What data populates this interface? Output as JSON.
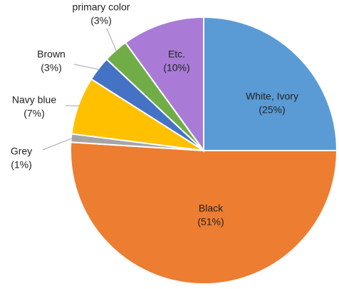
{
  "chart_data": {
    "type": "pie",
    "categories": [
      "White, Ivory",
      "Black",
      "Grey",
      "Navy blue",
      "Brown",
      "primary color",
      "Etc."
    ],
    "values": [
      25,
      51,
      1,
      7,
      3,
      3,
      10
    ],
    "value_labels": [
      "(25%)",
      "(51%)",
      "(1%)",
      "(7%)",
      "(3%)",
      "(3%)",
      "(10%)"
    ],
    "colors": [
      "#5b9bd5",
      "#ed7d31",
      "#a5a5a5",
      "#ffc000",
      "#4472c4",
      "#70ad47",
      "#a97bd6"
    ]
  }
}
